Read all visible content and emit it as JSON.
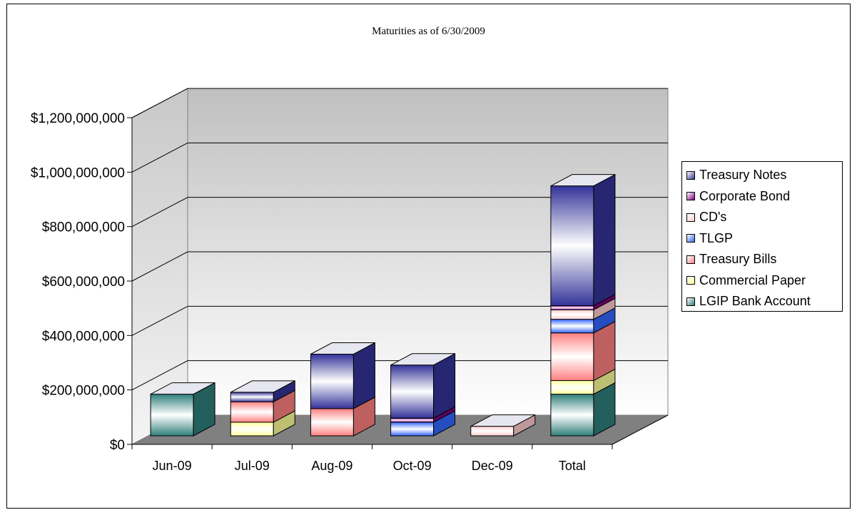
{
  "chart_data": {
    "type": "bar",
    "stacked": true,
    "three_d": true,
    "title": "Maturities as of 6/30/2009",
    "xlabel": "",
    "ylabel": "",
    "categories": [
      "Jun-09",
      "Jul-09",
      "Aug-09",
      "Oct-09",
      "Dec-09",
      "Total"
    ],
    "ylim": [
      0,
      1200000000
    ],
    "ytick_values": [
      0,
      200000000,
      400000000,
      600000000,
      800000000,
      1000000000,
      1200000000
    ],
    "ytick_labels": [
      "$0",
      "$200,000,000",
      "$400,000,000",
      "$600,000,000",
      "$800,000,000",
      "$1,000,000,000",
      "$1,200,000,000"
    ],
    "grid": true,
    "legend_position": "right",
    "series": [
      {
        "name": "LGIP Bank Account",
        "color": "#2f7f7a",
        "values": [
          153000000,
          0,
          0,
          0,
          0,
          153000000
        ]
      },
      {
        "name": "Commercial Paper",
        "color": "#ffff99",
        "values": [
          0,
          50000000,
          0,
          0,
          0,
          50000000
        ]
      },
      {
        "name": "Treasury Bills",
        "color": "#ff8080",
        "values": [
          0,
          75000000,
          100000000,
          0,
          0,
          175000000
        ]
      },
      {
        "name": "TLGP",
        "color": "#3366ff",
        "values": [
          0,
          0,
          0,
          50000000,
          0,
          50000000
        ]
      },
      {
        "name": "CD's",
        "color": "#ffcccc",
        "values": [
          0,
          0,
          0,
          0,
          35000000,
          35000000
        ]
      },
      {
        "name": "Corporate Bond",
        "color": "#800080",
        "values": [
          0,
          0,
          0,
          15000000,
          0,
          15000000
        ]
      },
      {
        "name": "Treasury Notes",
        "color": "#333399",
        "values": [
          0,
          35000000,
          200000000,
          195000000,
          0,
          440000000
        ]
      }
    ]
  }
}
